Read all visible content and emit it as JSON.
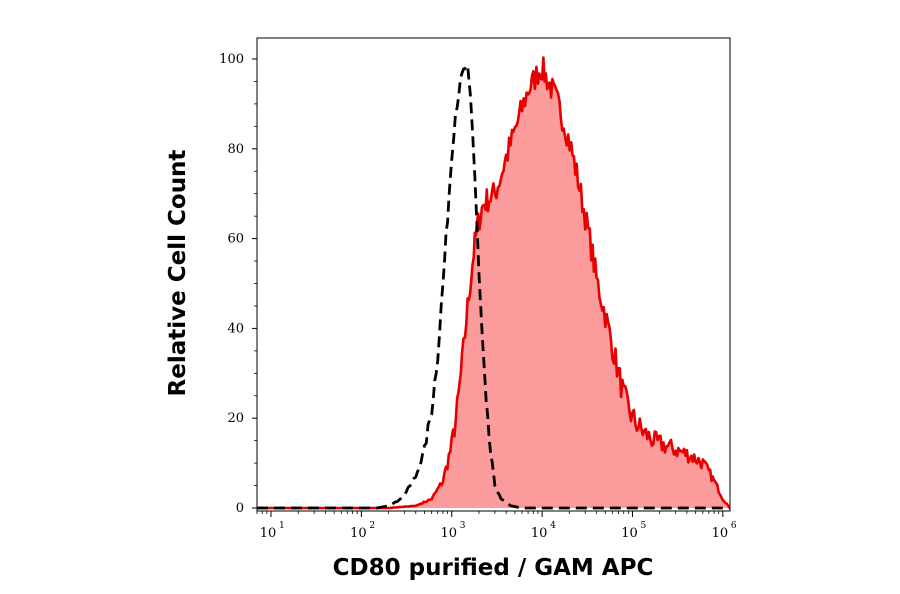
{
  "chart_data": {
    "type": "area",
    "title": "",
    "xlabel": "CD80 purified / GAM APC",
    "ylabel": "Relative Cell Count",
    "x_scale": "log",
    "xlim": [
      7,
      1200000
    ],
    "ylim": [
      0,
      100
    ],
    "x_ticks": [
      {
        "base": "10",
        "exp": "1",
        "value": 10
      },
      {
        "base": "10",
        "exp": "2",
        "value": 100
      },
      {
        "base": "10",
        "exp": "3",
        "value": 1000
      },
      {
        "base": "10",
        "exp": "4",
        "value": 10000
      },
      {
        "base": "10",
        "exp": "5",
        "value": 100000
      },
      {
        "base": "10",
        "exp": "6",
        "value": 1000000
      }
    ],
    "y_ticks": [
      "0",
      "20",
      "40",
      "60",
      "80",
      "100"
    ],
    "grid": false,
    "series": [
      {
        "style": "filled",
        "line_color": "#e60000",
        "fill_color": "#fb9b9b",
        "points": [
          [
            7,
            0
          ],
          [
            200,
            0
          ],
          [
            400,
            0.5
          ],
          [
            600,
            2
          ],
          [
            800,
            6
          ],
          [
            1000,
            14
          ],
          [
            1150,
            22
          ],
          [
            1300,
            32
          ],
          [
            1450,
            42
          ],
          [
            1600,
            50
          ],
          [
            1750,
            57
          ],
          [
            1900,
            62
          ],
          [
            2100,
            66
          ],
          [
            2300,
            68
          ],
          [
            2600,
            69
          ],
          [
            3000,
            70
          ],
          [
            3500,
            74
          ],
          [
            4000,
            78
          ],
          [
            5000,
            84
          ],
          [
            6000,
            89
          ],
          [
            7000,
            93
          ],
          [
            8000,
            95
          ],
          [
            9000,
            97
          ],
          [
            10000,
            98
          ],
          [
            11000,
            96
          ],
          [
            13000,
            93
          ],
          [
            15000,
            90
          ],
          [
            18000,
            85
          ],
          [
            21000,
            80
          ],
          [
            25000,
            73
          ],
          [
            30000,
            65
          ],
          [
            35000,
            58
          ],
          [
            40000,
            51
          ],
          [
            50000,
            43
          ],
          [
            60000,
            36
          ],
          [
            70000,
            30
          ],
          [
            80000,
            25
          ],
          [
            100000,
            20
          ],
          [
            130000,
            17
          ],
          [
            170000,
            15
          ],
          [
            220000,
            14
          ],
          [
            300000,
            13
          ],
          [
            400000,
            12
          ],
          [
            500000,
            11
          ],
          [
            600000,
            10
          ],
          [
            700000,
            8
          ],
          [
            800000,
            6
          ],
          [
            900000,
            4
          ],
          [
            1000000,
            2
          ],
          [
            1100000,
            1
          ],
          [
            1200000,
            0
          ]
        ]
      },
      {
        "style": "dashed",
        "line_color": "#000000",
        "points": [
          [
            7,
            0
          ],
          [
            150,
            0
          ],
          [
            200,
            0.5
          ],
          [
            250,
            1.5
          ],
          [
            300,
            3
          ],
          [
            400,
            7
          ],
          [
            500,
            13
          ],
          [
            600,
            22
          ],
          [
            700,
            34
          ],
          [
            800,
            50
          ],
          [
            900,
            65
          ],
          [
            1000,
            79
          ],
          [
            1100,
            88
          ],
          [
            1200,
            93
          ],
          [
            1300,
            96
          ],
          [
            1400,
            98
          ],
          [
            1500,
            97
          ],
          [
            1600,
            92
          ],
          [
            1700,
            84
          ],
          [
            1800,
            74
          ],
          [
            1900,
            63
          ],
          [
            2000,
            52
          ],
          [
            2200,
            36
          ],
          [
            2400,
            23
          ],
          [
            2700,
            12
          ],
          [
            3000,
            5
          ],
          [
            3500,
            2
          ],
          [
            4500,
            0.5
          ],
          [
            6000,
            0
          ],
          [
            1200000,
            0
          ]
        ]
      }
    ]
  }
}
